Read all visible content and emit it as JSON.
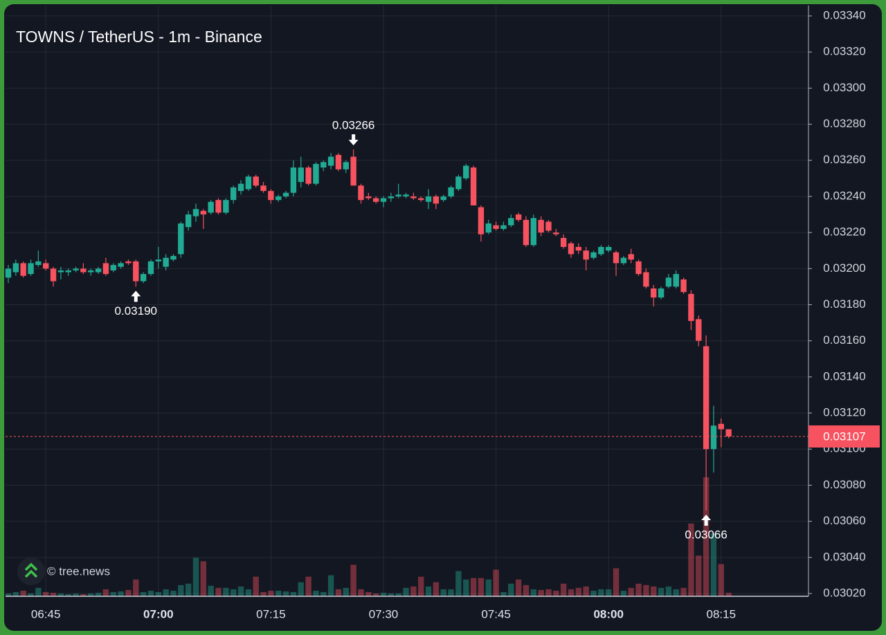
{
  "chart_data": {
    "type": "candlestick",
    "title": "TOWNS / TetherUS - 1m - Binance",
    "watermark": "© tree.news",
    "x": [
      "06:40",
      "06:41",
      "06:42",
      "06:43",
      "06:44",
      "06:45",
      "06:46",
      "06:47",
      "06:48",
      "06:49",
      "06:50",
      "06:51",
      "06:52",
      "06:53",
      "06:54",
      "06:55",
      "06:56",
      "06:57",
      "06:58",
      "06:59",
      "07:00",
      "07:01",
      "07:02",
      "07:03",
      "07:04",
      "07:05",
      "07:06",
      "07:07",
      "07:08",
      "07:09",
      "07:10",
      "07:11",
      "07:12",
      "07:13",
      "07:14",
      "07:15",
      "07:16",
      "07:17",
      "07:18",
      "07:19",
      "07:20",
      "07:21",
      "07:22",
      "07:23",
      "07:24",
      "07:25",
      "07:26",
      "07:27",
      "07:28",
      "07:29",
      "07:30",
      "07:31",
      "07:32",
      "07:33",
      "07:34",
      "07:35",
      "07:36",
      "07:37",
      "07:38",
      "07:39",
      "07:40",
      "07:41",
      "07:42",
      "07:43",
      "07:44",
      "07:45",
      "07:46",
      "07:47",
      "07:48",
      "07:49",
      "07:50",
      "07:51",
      "07:52",
      "07:53",
      "07:54",
      "07:55",
      "07:56",
      "07:57",
      "07:58",
      "07:59",
      "08:00",
      "08:01",
      "08:02",
      "08:03",
      "08:04",
      "08:05",
      "08:06",
      "08:07",
      "08:08",
      "08:09",
      "08:10",
      "08:11",
      "08:12",
      "08:13",
      "08:14",
      "08:15",
      "08:16"
    ],
    "open": [
      0.03195,
      0.03198,
      0.03203,
      0.03197,
      0.03202,
      0.03203,
      0.032,
      0.03198,
      0.03198,
      0.03199,
      0.032,
      0.03198,
      0.03198,
      0.03203,
      0.03199,
      0.03201,
      0.03204,
      0.03204,
      0.03193,
      0.03197,
      0.03204,
      0.03201,
      0.03205,
      0.03208,
      0.03223,
      0.03229,
      0.03232,
      0.03231,
      0.03238,
      0.03231,
      0.03238,
      0.03243,
      0.03244,
      0.03251,
      0.03246,
      0.03243,
      0.03238,
      0.0324,
      0.03242,
      0.03248,
      0.03256,
      0.03247,
      0.03256,
      0.03257,
      0.03263,
      0.03255,
      0.03262,
      0.03246,
      0.0324,
      0.03239,
      0.03237,
      0.03239,
      0.0324,
      0.0324,
      0.0324,
      0.03239,
      0.03237,
      0.0324,
      0.03238,
      0.0324,
      0.03244,
      0.0325,
      0.03256,
      0.03234,
      0.0322,
      0.03224,
      0.03222,
      0.03224,
      0.0323,
      0.03227,
      0.03213,
      0.03227,
      0.03226,
      0.0322,
      0.03217,
      0.03214,
      0.03212,
      0.0321,
      0.03206,
      0.03208,
      0.0321,
      0.03209,
      0.03203,
      0.03208,
      0.03204,
      0.03198,
      0.03189,
      0.03184,
      0.0319,
      0.0319,
      0.03194,
      0.03186,
      0.03172,
      0.03157,
      0.031,
      0.03114,
      0.03111
    ],
    "high": [
      0.03202,
      0.03205,
      0.03204,
      0.03205,
      0.0321,
      0.03205,
      0.03201,
      0.03201,
      0.032,
      0.03201,
      0.03203,
      0.032,
      0.03201,
      0.03206,
      0.03203,
      0.03204,
      0.03205,
      0.03205,
      0.03198,
      0.03205,
      0.03212,
      0.03208,
      0.03208,
      0.03226,
      0.03232,
      0.03236,
      0.03233,
      0.03238,
      0.03239,
      0.03239,
      0.03246,
      0.03249,
      0.03252,
      0.03252,
      0.03248,
      0.03244,
      0.03241,
      0.03243,
      0.0326,
      0.03262,
      0.03257,
      0.03259,
      0.0326,
      0.03264,
      0.03264,
      0.0326,
      0.03266,
      0.03247,
      0.03242,
      0.0324,
      0.0324,
      0.03242,
      0.03247,
      0.03242,
      0.03242,
      0.0324,
      0.03244,
      0.03241,
      0.03241,
      0.03246,
      0.03252,
      0.03258,
      0.03257,
      0.03235,
      0.03227,
      0.03226,
      0.03226,
      0.0323,
      0.03231,
      0.03229,
      0.0323,
      0.03229,
      0.03227,
      0.03222,
      0.03219,
      0.03215,
      0.03214,
      0.03212,
      0.0321,
      0.03213,
      0.03213,
      0.0321,
      0.03207,
      0.03211,
      0.03205,
      0.032,
      0.03191,
      0.0319,
      0.03197,
      0.03199,
      0.03195,
      0.03188,
      0.03174,
      0.03163,
      0.03124,
      0.03117,
      0.03111
    ],
    "low": [
      0.03192,
      0.03196,
      0.03195,
      0.03196,
      0.03201,
      0.03199,
      0.0319,
      0.03194,
      0.03196,
      0.03198,
      0.03197,
      0.03196,
      0.03197,
      0.03196,
      0.03198,
      0.032,
      0.03202,
      0.0319,
      0.03192,
      0.03196,
      0.032,
      0.03199,
      0.03204,
      0.03206,
      0.03221,
      0.03226,
      0.03222,
      0.0323,
      0.0323,
      0.0323,
      0.03236,
      0.03241,
      0.03243,
      0.03245,
      0.03242,
      0.03236,
      0.03237,
      0.03239,
      0.0324,
      0.03245,
      0.03246,
      0.03246,
      0.03254,
      0.03255,
      0.03254,
      0.03253,
      0.03246,
      0.03236,
      0.03238,
      0.03236,
      0.03234,
      0.03237,
      0.03239,
      0.03239,
      0.03238,
      0.03237,
      0.03233,
      0.03233,
      0.03237,
      0.03239,
      0.03243,
      0.03249,
      0.03235,
      0.03215,
      0.03219,
      0.03221,
      0.03221,
      0.03223,
      0.03226,
      0.03212,
      0.03212,
      0.03218,
      0.0322,
      0.03218,
      0.03211,
      0.03206,
      0.03208,
      0.03199,
      0.03205,
      0.03207,
      0.03209,
      0.03196,
      0.03202,
      0.03203,
      0.03196,
      0.03189,
      0.03179,
      0.03183,
      0.03189,
      0.03189,
      0.03186,
      0.03166,
      0.03157,
      0.03066,
      0.03087,
      0.03101,
      0.03106
    ],
    "close": [
      0.032,
      0.03203,
      0.03196,
      0.03203,
      0.03204,
      0.032,
      0.03193,
      0.03199,
      0.03199,
      0.032,
      0.03198,
      0.03199,
      0.032,
      0.03197,
      0.03202,
      0.03203,
      0.03203,
      0.03193,
      0.03197,
      0.03204,
      0.03205,
      0.03206,
      0.03207,
      0.03225,
      0.0323,
      0.03233,
      0.0323,
      0.03237,
      0.03231,
      0.03238,
      0.03245,
      0.03247,
      0.03251,
      0.03246,
      0.03243,
      0.03238,
      0.0324,
      0.03242,
      0.03256,
      0.03256,
      0.03247,
      0.03258,
      0.03259,
      0.03262,
      0.03255,
      0.03259,
      0.03246,
      0.03238,
      0.03239,
      0.03237,
      0.03239,
      0.0324,
      0.03241,
      0.03241,
      0.03239,
      0.03238,
      0.0324,
      0.03236,
      0.0324,
      0.03245,
      0.03251,
      0.03257,
      0.03235,
      0.03219,
      0.03225,
      0.03222,
      0.03224,
      0.03228,
      0.03227,
      0.03213,
      0.03228,
      0.0322,
      0.03221,
      0.03219,
      0.03212,
      0.03208,
      0.0321,
      0.03205,
      0.03209,
      0.03212,
      0.03212,
      0.03203,
      0.03206,
      0.03205,
      0.03197,
      0.0319,
      0.03184,
      0.03189,
      0.03195,
      0.03197,
      0.03187,
      0.03171,
      0.0316,
      0.031,
      0.03113,
      0.03111,
      0.03107
    ],
    "volume": [
      4,
      6,
      8,
      4,
      12,
      6,
      5,
      4,
      3,
      4,
      3,
      4,
      5,
      10,
      6,
      7,
      9,
      24,
      6,
      8,
      6,
      10,
      8,
      16,
      18,
      55,
      50,
      15,
      12,
      12,
      10,
      14,
      10,
      28,
      6,
      8,
      8,
      7,
      6,
      20,
      28,
      8,
      6,
      30,
      10,
      12,
      45,
      10,
      6,
      4,
      5,
      4,
      4,
      12,
      14,
      28,
      14,
      20,
      10,
      10,
      36,
      24,
      26,
      26,
      24,
      38,
      6,
      18,
      24,
      16,
      10,
      9,
      10,
      8,
      18,
      10,
      12,
      14,
      8,
      10,
      10,
      40,
      8,
      12,
      18,
      16,
      14,
      12,
      14,
      10,
      12,
      104,
      58,
      170,
      90,
      46,
      5
    ],
    "up_color": "#22ab94",
    "down_color": "#f7525f",
    "ylim": [
      0.0302,
      0.0334
    ],
    "yticks": [
      {
        "value": 0.0302,
        "label": "0.03020"
      },
      {
        "value": 0.0304,
        "label": "0.03040"
      },
      {
        "value": 0.0306,
        "label": "0.03060"
      },
      {
        "value": 0.0308,
        "label": "0.03080"
      },
      {
        "value": 0.031,
        "label": "0.03100"
      },
      {
        "value": 0.0312,
        "label": "0.03120"
      },
      {
        "value": 0.0314,
        "label": "0.03140"
      },
      {
        "value": 0.0316,
        "label": "0.03160"
      },
      {
        "value": 0.0318,
        "label": "0.03180"
      },
      {
        "value": 0.032,
        "label": "0.03200"
      },
      {
        "value": 0.0322,
        "label": "0.03220"
      },
      {
        "value": 0.0324,
        "label": "0.03240"
      },
      {
        "value": 0.0326,
        "label": "0.03260"
      },
      {
        "value": 0.0328,
        "label": "0.03280"
      },
      {
        "value": 0.033,
        "label": "0.03300"
      },
      {
        "value": 0.0332,
        "label": "0.03320"
      },
      {
        "value": 0.0334,
        "label": "0.03340"
      }
    ],
    "xticks": [
      "06:45",
      "07:00",
      "07:15",
      "07:30",
      "07:45",
      "08:00",
      "08:15"
    ],
    "last_price": {
      "value": 0.03107,
      "label": "0.03107"
    },
    "annotations": [
      {
        "x": "07:26",
        "value": 0.03266,
        "label": "0.03266"
      },
      {
        "x": "06:57",
        "value": 0.0319,
        "label": "0.03190"
      },
      {
        "x": "08:13",
        "value": 0.03066,
        "label": "0.03066"
      }
    ],
    "grid": true
  }
}
